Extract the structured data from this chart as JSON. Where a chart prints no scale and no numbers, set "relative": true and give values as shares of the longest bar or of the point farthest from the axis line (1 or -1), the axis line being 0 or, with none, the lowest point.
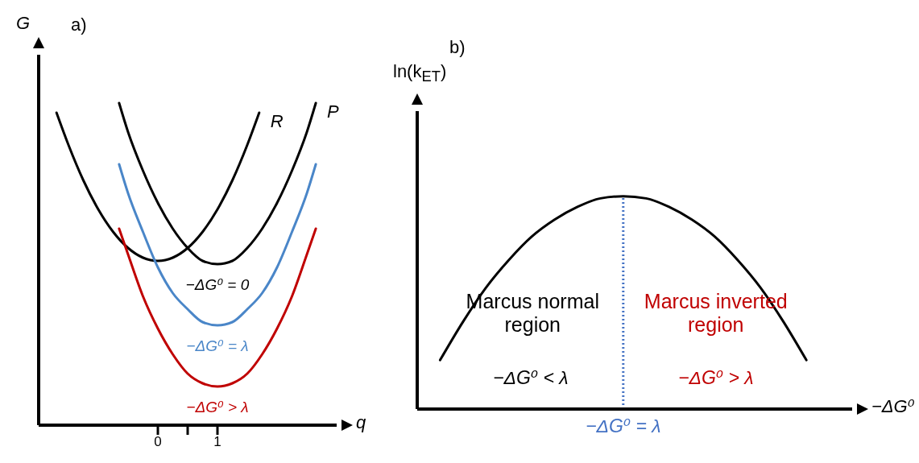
{
  "chart_data": [
    {
      "type": "line",
      "title": "a)",
      "xlabel": "q",
      "ylabel": "G",
      "relative": true,
      "xlim": [
        -2,
        3
      ],
      "xticks": [
        0,
        {
          "value": 0.5,
          "label": null
        },
        1
      ],
      "grid": false,
      "marker": "none",
      "line_style": "solid",
      "series": [
        {
          "name": "R",
          "color": "#000000",
          "x": [
            -1.7,
            -1.5,
            -1.25,
            -1,
            -0.75,
            -0.5,
            -0.25,
            0,
            0.25,
            0.5,
            0.75,
            1,
            1.25,
            1.5,
            1.7
          ],
          "values": [
            0.97,
            0.87,
            0.76,
            0.67,
            0.6,
            0.55,
            0.52,
            0.51,
            0.52,
            0.55,
            0.6,
            0.67,
            0.76,
            0.87,
            0.97
          ]
        },
        {
          "name": "P",
          "color": "#000000",
          "x": [
            -0.65,
            -0.5,
            -0.25,
            0,
            0.25,
            0.5,
            0.75,
            1,
            1.25,
            1.5,
            1.75,
            2,
            2.25,
            2.5,
            2.65
          ],
          "values": [
            1.0,
            0.91,
            0.79,
            0.69,
            0.61,
            0.55,
            0.51,
            0.5,
            0.51,
            0.55,
            0.61,
            0.69,
            0.79,
            0.91,
            1.0
          ]
        },
        {
          "color": "#4a86c8",
          "x": [
            -0.65,
            -0.5,
            -0.25,
            0,
            0.25,
            0.5,
            0.75,
            1,
            1.25,
            1.5,
            1.75,
            2,
            2.25,
            2.5,
            2.65
          ],
          "values": [
            0.81,
            0.72,
            0.6,
            0.49,
            0.41,
            0.36,
            0.32,
            0.31,
            0.32,
            0.36,
            0.41,
            0.49,
            0.6,
            0.72,
            0.81
          ]
        },
        {
          "color": "#c00000",
          "x": [
            -0.65,
            -0.5,
            -0.25,
            0,
            0.25,
            0.5,
            0.75,
            1,
            1.25,
            1.5,
            1.75,
            2,
            2.25,
            2.5,
            2.65
          ],
          "values": [
            0.61,
            0.53,
            0.4,
            0.3,
            0.22,
            0.16,
            0.13,
            0.12,
            0.13,
            0.16,
            0.22,
            0.3,
            0.4,
            0.53,
            0.61
          ]
        }
      ],
      "annotations": [
        "−ΔG⁰ = 0",
        "−ΔG⁰ = λ",
        "−ΔG⁰ > λ"
      ]
    },
    {
      "type": "line",
      "title": "b)",
      "xlabel": "−ΔG⁰",
      "ylabel": "ln(k$_{ET}$)",
      "relative": true,
      "grid": false,
      "marker": "none",
      "line_style": "solid",
      "categories": [
        null,
        null,
        null,
        null,
        null,
        null,
        null,
        null,
        null,
        null,
        null,
        null,
        null,
        null,
        null,
        null,
        null,
        null,
        null,
        null
      ],
      "series": [
        {
          "color": "#000000",
          "values": [
            null,
            0.23,
            0.41,
            0.57,
            0.7,
            0.81,
            0.89,
            0.95,
            0.99,
            1.0,
            0.99,
            0.95,
            0.89,
            0.81,
            0.7,
            0.57,
            0.41,
            0.23,
            null,
            null
          ]
        }
      ],
      "annotations": [
        "Marcus normal region",
        "Marcus inverted region",
        "−ΔG⁰ < λ",
        "−ΔG⁰ > λ",
        "−ΔG⁰ = λ"
      ]
    }
  ]
}
